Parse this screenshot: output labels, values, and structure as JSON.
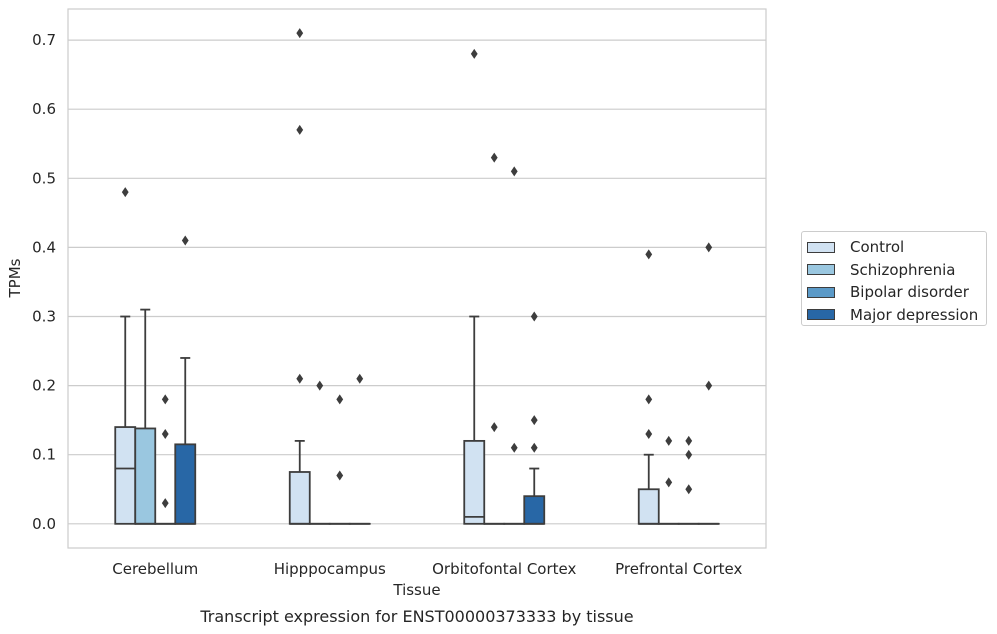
{
  "chart_data": {
    "type": "box",
    "xlabel": "Tissue",
    "ylabel": "TPMs",
    "caption": "Transcript expression for ENST00000373333 by tissue",
    "ylim": [
      -0.035,
      0.745
    ],
    "yticks": [
      0.0,
      0.1,
      0.2,
      0.3,
      0.4,
      0.5,
      0.6,
      0.7
    ],
    "ytick_labels": [
      "0.0",
      "0.1",
      "0.2",
      "0.3",
      "0.4",
      "0.5",
      "0.6",
      "0.7"
    ],
    "categories": [
      "Cerebellum",
      "Hipppocampus",
      "Orbitofontal Cortex",
      "Prefrontal Cortex"
    ],
    "grid": "horizontal",
    "legend_position": "right",
    "series": [
      {
        "name": "Control",
        "color": "#d1e2f2",
        "boxes": [
          {
            "q1": 0.0,
            "median": 0.08,
            "q3": 0.14,
            "whisker_low": 0.0,
            "whisker_high": 0.3,
            "outliers": [
              0.48
            ]
          },
          {
            "q1": 0.0,
            "median": 0.0,
            "q3": 0.075,
            "whisker_low": 0.0,
            "whisker_high": 0.12,
            "outliers": [
              0.21,
              0.57,
              0.71
            ]
          },
          {
            "q1": 0.0,
            "median": 0.01,
            "q3": 0.12,
            "whisker_low": 0.0,
            "whisker_high": 0.3,
            "outliers": [
              0.68
            ]
          },
          {
            "q1": 0.0,
            "median": 0.0,
            "q3": 0.05,
            "whisker_low": 0.0,
            "whisker_high": 0.1,
            "outliers": [
              0.13,
              0.18,
              0.39
            ]
          }
        ]
      },
      {
        "name": "Schizophrenia",
        "color": "#9ac7e0",
        "boxes": [
          {
            "q1": 0.0,
            "median": 0.0,
            "q3": 0.138,
            "whisker_low": 0.0,
            "whisker_high": 0.31,
            "outliers": []
          },
          {
            "q1": 0.0,
            "median": 0.0,
            "q3": 0.0,
            "whisker_low": 0.0,
            "whisker_high": 0.0,
            "outliers": [
              0.2
            ]
          },
          {
            "q1": 0.0,
            "median": 0.0,
            "q3": 0.0,
            "whisker_low": 0.0,
            "whisker_high": 0.0,
            "outliers": [
              0.14,
              0.53
            ]
          },
          {
            "q1": 0.0,
            "median": 0.0,
            "q3": 0.0,
            "whisker_low": 0.0,
            "whisker_high": 0.0,
            "outliers": [
              0.06,
              0.12
            ]
          }
        ]
      },
      {
        "name": "Bipolar disorder",
        "color": "#5b9ac8",
        "boxes": [
          {
            "q1": 0.0,
            "median": 0.0,
            "q3": 0.0,
            "whisker_low": 0.0,
            "whisker_high": 0.0,
            "outliers": [
              0.03,
              0.13,
              0.18
            ]
          },
          {
            "q1": 0.0,
            "median": 0.0,
            "q3": 0.0,
            "whisker_low": 0.0,
            "whisker_high": 0.0,
            "outliers": [
              0.07,
              0.18
            ]
          },
          {
            "q1": 0.0,
            "median": 0.0,
            "q3": 0.0,
            "whisker_low": 0.0,
            "whisker_high": 0.0,
            "outliers": [
              0.11,
              0.51
            ]
          },
          {
            "q1": 0.0,
            "median": 0.0,
            "q3": 0.0,
            "whisker_low": 0.0,
            "whisker_high": 0.0,
            "outliers": [
              0.05,
              0.1,
              0.12
            ]
          }
        ]
      },
      {
        "name": "Major depression",
        "color": "#2867a6",
        "boxes": [
          {
            "q1": 0.0,
            "median": 0.0,
            "q3": 0.115,
            "whisker_low": 0.0,
            "whisker_high": 0.24,
            "outliers": [
              0.41
            ]
          },
          {
            "q1": 0.0,
            "median": 0.0,
            "q3": 0.0,
            "whisker_low": 0.0,
            "whisker_high": 0.0,
            "outliers": [
              0.21
            ]
          },
          {
            "q1": 0.0,
            "median": 0.0,
            "q3": 0.04,
            "whisker_low": 0.0,
            "whisker_high": 0.08,
            "outliers": [
              0.11,
              0.15,
              0.3
            ]
          },
          {
            "q1": 0.0,
            "median": 0.0,
            "q3": 0.0,
            "whisker_low": 0.0,
            "whisker_high": 0.0,
            "outliers": [
              0.2,
              0.4
            ]
          }
        ]
      }
    ]
  }
}
